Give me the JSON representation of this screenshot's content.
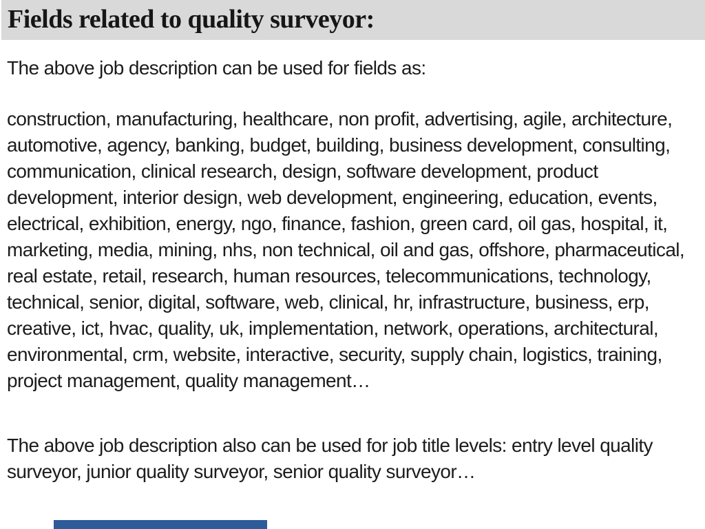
{
  "slide": {
    "title": "Fields related to quality surveyor:",
    "intro": "The above job description can be used for fields as:",
    "fields_text": "construction, manufacturing, healthcare, non profit, advertising, agile, architecture, automotive, agency, banking, budget, building, business development, consulting, communication, clinical research, design, software development, product development, interior design, web development, engineering, education, events, electrical, exhibition, energy, ngo, finance, fashion, green card, oil gas, hospital, it, marketing, media, mining, nhs, non technical, oil and gas, offshore, pharmaceutical, real estate, retail, research, human resources, telecommunications, technology, technical, senior, digital, software, web, clinical, hr, infrastructure, business, erp, creative, ict, hvac, quality, uk, implementation, network, operations, architectural, environmental, crm, website, interactive, security, supply chain, logistics, training, project management, quality management…",
    "levels_text": "The above job description also can be used for job title levels: entry level quality surveyor, junior quality surveyor, senior quality surveyor…",
    "colors": {
      "header_bg": "#d9d9d9",
      "body_text": "#1c1c1c",
      "progress_bar": "#2e5c9a"
    }
  }
}
